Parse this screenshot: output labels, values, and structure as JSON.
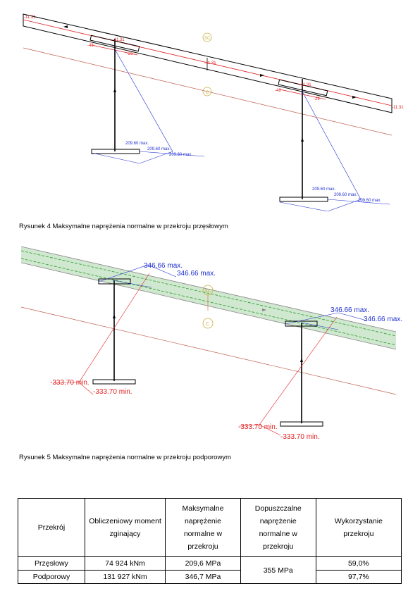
{
  "fig4": {
    "caption": "Rysunek 4 Maksymalne naprężenia normalne w przekroju przęsłowym",
    "labels": {
      "a": "-11.31",
      "b": "-11.31",
      "c": "-11.31",
      "d": "-11.31",
      "e": "-11.31",
      "f": "-48",
      "g": "-48",
      "h": "-29",
      "i": "-29",
      "sc": "SC",
      "c_mark": "C",
      "max1": "209.60 max.",
      "max2": "209.60 max.",
      "max3": "209.60 max.",
      "max4": "209.60 max.",
      "max5": "209.60 max.",
      "max6": "209.60 max."
    }
  },
  "fig5": {
    "caption": "Rysunek 5 Maksymalne naprężenia normalne w przekroju podporowym",
    "labels": {
      "max1": "346.66 max.",
      "max2": "346.66 max.",
      "max3": "346.66 max.",
      "max4": "346.66 max.",
      "min1": "-333.70 min.",
      "min2": "-333.70 min.",
      "min3": "-333.70 min.",
      "min4": "-333.70 min.",
      "sc": "SC",
      "c_mark": "C"
    }
  },
  "table": {
    "headers": [
      "Przekrój",
      "Obliczeniowy moment zginający",
      "Maksymalne naprężenie normalne w przekroju",
      "Dopuszczalne naprężenie normalne w przekroju",
      "Wykorzystanie przekroju"
    ],
    "rows": [
      {
        "name": "Przęsłowy",
        "moment": "74 924 kNm",
        "stress": "209,6 MPa",
        "usage": "59,0%"
      },
      {
        "name": "Podporowy",
        "moment": "131 927 kNm",
        "stress": "346,7 MPa",
        "usage": "97,7%"
      }
    ],
    "allowable": "355 MPa"
  },
  "colors": {
    "red": "#e02020",
    "blue": "#2030d0",
    "sc": "#c8b040",
    "green": "#2a9a2a",
    "band": "#cfe8cf"
  }
}
